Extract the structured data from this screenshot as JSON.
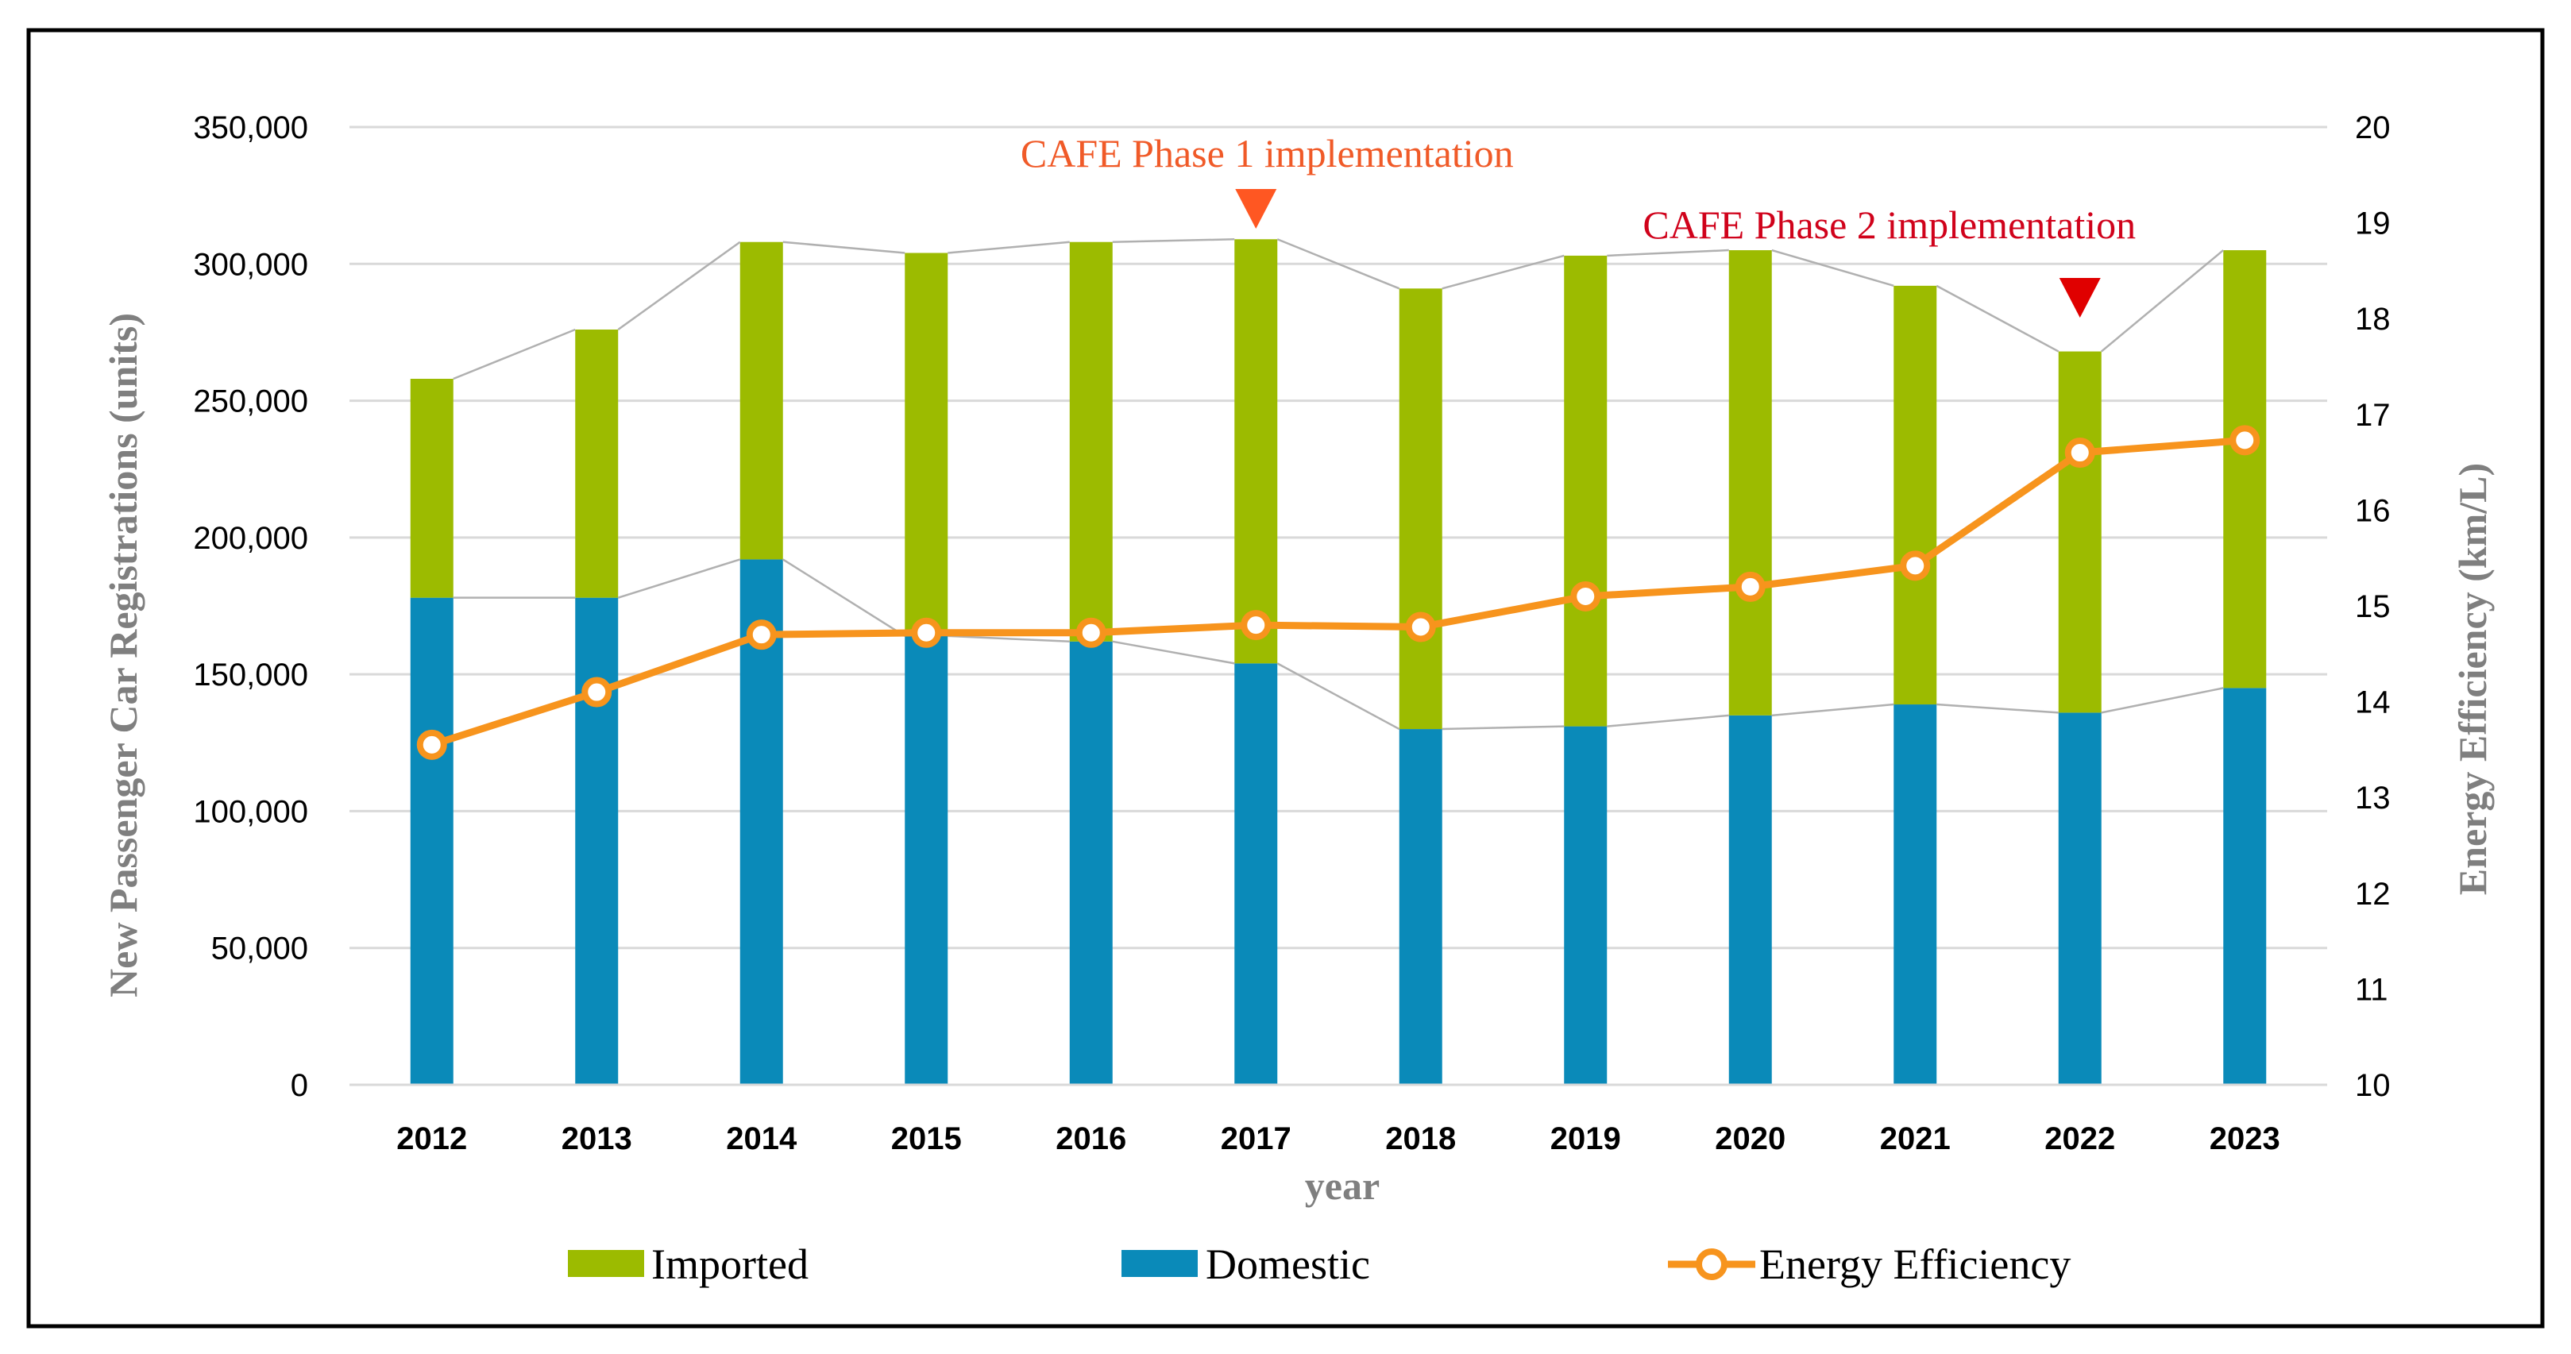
{
  "chart_data": {
    "type": "bar",
    "stacked": true,
    "categories": [
      "2012",
      "2013",
      "2014",
      "2015",
      "2016",
      "2017",
      "2018",
      "2019",
      "2020",
      "2021",
      "2022",
      "2023"
    ],
    "series": [
      {
        "name": "Domestic",
        "axis": "left",
        "color": "#0a8ab9",
        "values": [
          178000,
          178000,
          192000,
          164000,
          162000,
          154000,
          130000,
          131000,
          135000,
          139000,
          136000,
          145000
        ]
      },
      {
        "name": "Imported",
        "axis": "left",
        "color": "#9cbb00",
        "values": [
          80000,
          98000,
          116000,
          140000,
          146000,
          155000,
          161000,
          172000,
          170000,
          153000,
          132000,
          160000
        ]
      },
      {
        "name": "Energy Efficiency",
        "axis": "right",
        "type": "line",
        "color": "#f7941d",
        "values": [
          13.55,
          14.1,
          14.7,
          14.72,
          14.72,
          14.8,
          14.78,
          15.1,
          15.2,
          15.42,
          16.6,
          16.73
        ]
      }
    ],
    "xlabel": "year",
    "ylabel": "New Passenger Car Registrations (units)",
    "y2label": "Energy Efficiency (km/L)",
    "ylim": [
      0,
      350000
    ],
    "y2lim": [
      10,
      20
    ],
    "yticks": [
      0,
      50000,
      100000,
      150000,
      200000,
      250000,
      300000,
      350000
    ],
    "ytick_labels": [
      "0",
      "50,000",
      "100,000",
      "150,000",
      "200,000",
      "250,000",
      "300,000",
      "350,000"
    ],
    "y2ticks": [
      10,
      11,
      12,
      13,
      14,
      15,
      16,
      17,
      18,
      19,
      20
    ],
    "y2tick_labels": [
      "10",
      "11",
      "12",
      "13",
      "14",
      "15",
      "16",
      "17",
      "18",
      "19",
      "20"
    ],
    "grid": true,
    "legend": {
      "placement": "bottom",
      "entries": [
        "Imported",
        "Domestic",
        "Energy Efficiency"
      ]
    },
    "annotations": [
      {
        "text": "CAFE Phase 1 implementation",
        "category": "2017",
        "color": "#f05a28",
        "marker_color": "#ff5722"
      },
      {
        "text": "CAFE Phase 2 implementation",
        "category": "2022",
        "color": "#d0021b",
        "marker_color": "#e00000"
      }
    ]
  },
  "colors": {
    "grid": "#d9d9d9",
    "connector": "#b0b0b0",
    "axis_title": "#7f7f7f",
    "frame": "#000000",
    "marker_fill": "#ffffff"
  }
}
